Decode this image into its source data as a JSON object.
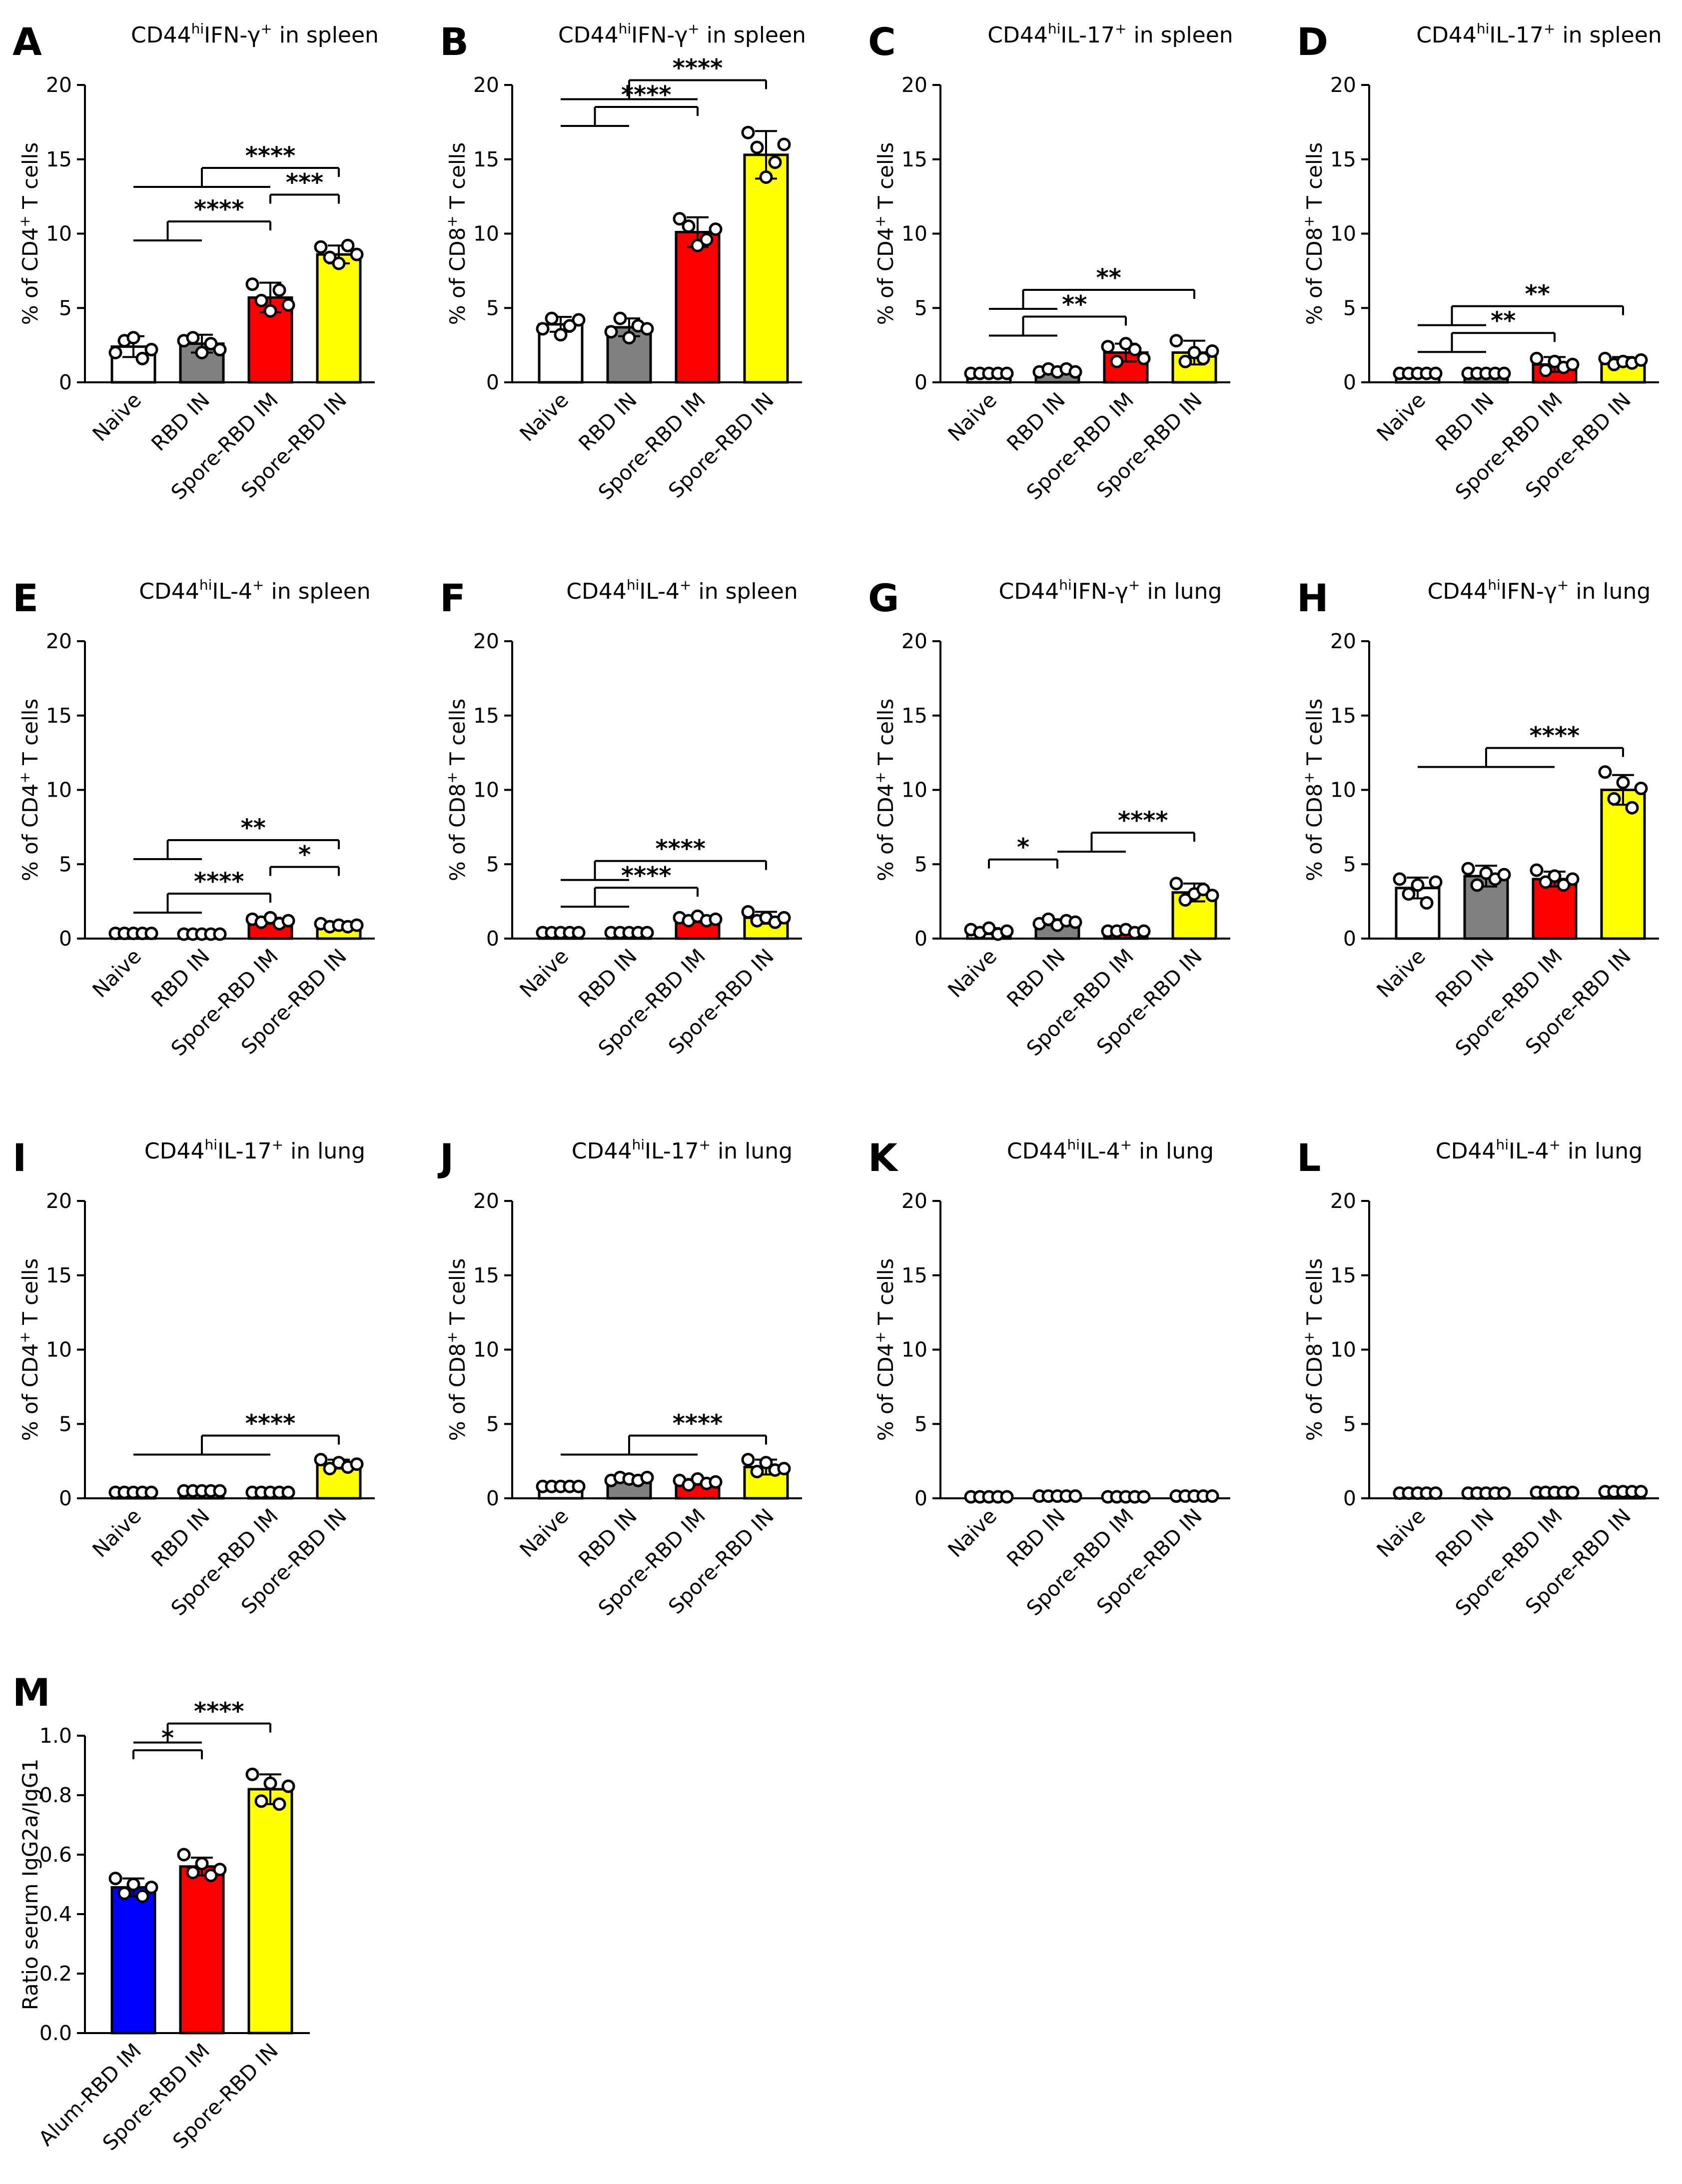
{
  "figure_caption_sup": {
    "hi": "hi",
    "plus": "+"
  },
  "chart_data": [
    {
      "panel": "A",
      "type": "bar",
      "title_base": "CD44",
      "title_marker": "IFN-γ",
      "title_suffix": " in spleen",
      "ylabel_pre": "% of CD4",
      "ylabel_post": " T cells",
      "ylim": [
        0,
        20
      ],
      "yticks": [
        0,
        5,
        10,
        15,
        20
      ],
      "categories": [
        "Naive",
        "RBD IN",
        "Spore-RBD IM",
        "Spore-RBD IN"
      ],
      "colors": [
        "#ffffff",
        "#808080",
        "#ff0000",
        "#ffff00"
      ],
      "values": [
        2.4,
        2.6,
        5.7,
        8.6
      ],
      "errors": [
        0.7,
        0.6,
        1.0,
        0.6
      ],
      "points": [
        [
          2.0,
          2.8,
          3.0,
          1.6,
          2.2
        ],
        [
          2.8,
          3.0,
          2.0,
          2.6,
          2.2
        ],
        [
          6.6,
          5.5,
          4.8,
          6.2,
          5.2
        ],
        [
          9.1,
          8.4,
          8.0,
          9.2,
          8.6
        ]
      ],
      "significance": [
        {
          "from": 0,
          "to": 3,
          "via": 2,
          "label": "****"
        },
        {
          "from": 2,
          "to": 3,
          "label": "***"
        },
        {
          "from": 0,
          "to": 2,
          "via": 1,
          "label": "****"
        }
      ]
    },
    {
      "panel": "B",
      "type": "bar",
      "title_base": "CD44",
      "title_marker": "IFN-γ",
      "title_suffix": " in spleen",
      "ylabel_pre": "% of CD8",
      "ylabel_post": " T cells",
      "ylim": [
        0,
        20
      ],
      "yticks": [
        0,
        5,
        10,
        15,
        20
      ],
      "categories": [
        "Naive",
        "RBD IN",
        "Spore-RBD IM",
        "Spore-RBD IN"
      ],
      "colors": [
        "#ffffff",
        "#808080",
        "#ff0000",
        "#ffff00"
      ],
      "values": [
        3.9,
        3.7,
        10.1,
        15.3
      ],
      "errors": [
        0.5,
        0.6,
        1.0,
        1.6
      ],
      "points": [
        [
          3.6,
          4.3,
          3.2,
          3.8,
          4.2
        ],
        [
          3.4,
          4.3,
          3.0,
          3.8,
          3.6
        ],
        [
          11.0,
          10.5,
          9.2,
          9.6,
          10.3
        ],
        [
          16.8,
          15.8,
          13.8,
          14.8,
          16.0
        ]
      ],
      "significance": [
        {
          "from": 0,
          "to": 3,
          "via": 2,
          "label": "****"
        },
        {
          "from": 0,
          "to": 2,
          "via": 1,
          "label": "****"
        }
      ]
    },
    {
      "panel": "C",
      "type": "bar",
      "title_base": "CD44",
      "title_marker": "IL-17",
      "title_suffix": " in spleen",
      "ylabel_pre": "% of CD4",
      "ylabel_post": " T cells",
      "ylim": [
        0,
        20
      ],
      "yticks": [
        0,
        5,
        10,
        15,
        20
      ],
      "categories": [
        "Naive",
        "RBD IN",
        "Spore-RBD IM",
        "Spore-RBD IN"
      ],
      "colors": [
        "#ffffff",
        "#808080",
        "#ff0000",
        "#ffff00"
      ],
      "values": [
        0.6,
        0.8,
        2.0,
        2.0
      ],
      "errors": [
        0.1,
        0.2,
        0.6,
        0.8
      ],
      "points": [
        [
          0.6,
          0.6,
          0.6,
          0.6,
          0.6
        ],
        [
          0.7,
          0.9,
          0.7,
          0.9,
          0.7
        ],
        [
          2.4,
          1.4,
          2.6,
          2.2,
          1.6
        ],
        [
          2.8,
          1.4,
          2.0,
          1.6,
          2.1
        ]
      ],
      "significance": [
        {
          "from": 0,
          "to": 3,
          "via": 1,
          "label": "**"
        },
        {
          "from": 0,
          "to": 2,
          "via": 1,
          "label": "**"
        }
      ]
    },
    {
      "panel": "D",
      "type": "bar",
      "title_base": "CD44",
      "title_marker": "IL-17",
      "title_suffix": " in spleen",
      "ylabel_pre": "% of CD8",
      "ylabel_post": " T cells",
      "ylim": [
        0,
        20
      ],
      "yticks": [
        0,
        5,
        10,
        15,
        20
      ],
      "categories": [
        "Naive",
        "RBD IN",
        "Spore-RBD IM",
        "Spore-RBD IN"
      ],
      "colors": [
        "#ffffff",
        "#808080",
        "#ff0000",
        "#ffff00"
      ],
      "values": [
        0.6,
        0.6,
        1.2,
        1.4
      ],
      "errors": [
        0.1,
        0.1,
        0.5,
        0.3
      ],
      "points": [
        [
          0.6,
          0.6,
          0.6,
          0.6,
          0.6
        ],
        [
          0.6,
          0.6,
          0.6,
          0.6,
          0.6
        ],
        [
          1.6,
          0.8,
          1.4,
          1.0,
          1.2
        ],
        [
          1.6,
          1.2,
          1.4,
          1.3,
          1.5
        ]
      ],
      "significance": [
        {
          "from": 0,
          "to": 3,
          "via": 1,
          "label": "**"
        },
        {
          "from": 0,
          "to": 2,
          "via": 1,
          "label": "**"
        }
      ]
    },
    {
      "panel": "E",
      "type": "bar",
      "title_base": "CD44",
      "title_marker": "IL-4",
      "title_suffix": " in spleen",
      "ylabel_pre": "% of CD4",
      "ylabel_post": " T cells",
      "ylim": [
        0,
        20
      ],
      "yticks": [
        0,
        5,
        10,
        15,
        20
      ],
      "categories": [
        "Naive",
        "RBD IN",
        "Spore-RBD IM",
        "Spore-RBD IN"
      ],
      "colors": [
        "#ffffff",
        "#808080",
        "#ff0000",
        "#ffff00"
      ],
      "values": [
        0.35,
        0.3,
        1.2,
        0.9
      ],
      "errors": [
        0.05,
        0.05,
        0.2,
        0.2
      ],
      "points": [
        [
          0.35,
          0.35,
          0.35,
          0.35,
          0.35
        ],
        [
          0.3,
          0.3,
          0.3,
          0.3,
          0.3
        ],
        [
          1.3,
          1.1,
          1.4,
          1.0,
          1.2
        ],
        [
          1.0,
          0.8,
          0.9,
          0.8,
          0.9
        ]
      ],
      "significance": [
        {
          "from": 0,
          "to": 3,
          "via": 1,
          "label": "**"
        },
        {
          "from": 2,
          "to": 3,
          "label": "*"
        },
        {
          "from": 0,
          "to": 2,
          "via": 1,
          "label": "****"
        }
      ]
    },
    {
      "panel": "F",
      "type": "bar",
      "title_base": "CD44",
      "title_marker": "IL-4",
      "title_suffix": " in spleen",
      "ylabel_pre": "% of CD8",
      "ylabel_post": " T cells",
      "ylim": [
        0,
        20
      ],
      "yticks": [
        0,
        5,
        10,
        15,
        20
      ],
      "categories": [
        "Naive",
        "RBD IN",
        "Spore-RBD IM",
        "Spore-RBD IN"
      ],
      "colors": [
        "#ffffff",
        "#808080",
        "#ff0000",
        "#ffff00"
      ],
      "values": [
        0.4,
        0.4,
        1.3,
        1.4
      ],
      "errors": [
        0.05,
        0.05,
        0.2,
        0.4
      ],
      "points": [
        [
          0.4,
          0.4,
          0.4,
          0.4,
          0.4
        ],
        [
          0.4,
          0.4,
          0.4,
          0.4,
          0.4
        ],
        [
          1.4,
          1.2,
          1.5,
          1.2,
          1.3
        ],
        [
          1.8,
          1.2,
          1.4,
          1.1,
          1.4
        ]
      ],
      "significance": [
        {
          "from": 0,
          "to": 3,
          "via": 1,
          "label": "****"
        },
        {
          "from": 0,
          "to": 2,
          "via": 1,
          "label": "****"
        }
      ]
    },
    {
      "panel": "G",
      "type": "bar",
      "title_base": "CD44",
      "title_marker": "IFN-γ",
      "title_suffix": " in lung",
      "ylabel_pre": "% of CD4",
      "ylabel_post": " T cells",
      "ylim": [
        0,
        20
      ],
      "yticks": [
        0,
        5,
        10,
        15,
        20
      ],
      "categories": [
        "Naive",
        "RBD IN",
        "Spore-RBD IM",
        "Spore-RBD IN"
      ],
      "colors": [
        "#ffffff",
        "#808080",
        "#ff0000",
        "#ffff00"
      ],
      "values": [
        0.5,
        1.1,
        0.5,
        3.1
      ],
      "errors": [
        0.2,
        0.2,
        0.1,
        0.6
      ],
      "points": [
        [
          0.6,
          0.4,
          0.7,
          0.3,
          0.5
        ],
        [
          1.0,
          1.3,
          0.9,
          1.2,
          1.1
        ],
        [
          0.5,
          0.5,
          0.6,
          0.4,
          0.5
        ],
        [
          3.7,
          2.6,
          3.0,
          3.3,
          2.9
        ]
      ],
      "significance": [
        {
          "from": 1,
          "to": 3,
          "via": 2,
          "label": "****"
        },
        {
          "from": 0,
          "to": 1,
          "label": "*"
        }
      ]
    },
    {
      "panel": "H",
      "type": "bar",
      "title_base": "CD44",
      "title_marker": "IFN-γ",
      "title_suffix": " in lung",
      "ylabel_pre": "% of CD8",
      "ylabel_post": " T cells",
      "ylim": [
        0,
        20
      ],
      "yticks": [
        0,
        5,
        10,
        15,
        20
      ],
      "categories": [
        "Naive",
        "RBD IN",
        "Spore-RBD IM",
        "Spore-RBD IN"
      ],
      "colors": [
        "#ffffff",
        "#808080",
        "#ff0000",
        "#ffff00"
      ],
      "values": [
        3.4,
        4.2,
        4.0,
        10.0
      ],
      "errors": [
        0.7,
        0.7,
        0.5,
        1.0
      ],
      "points": [
        [
          4.0,
          3.0,
          3.6,
          2.4,
          3.8
        ],
        [
          4.7,
          3.6,
          4.4,
          4.0,
          4.3
        ],
        [
          4.6,
          3.8,
          4.2,
          3.6,
          4.0
        ],
        [
          11.2,
          9.4,
          10.5,
          8.8,
          10.1
        ]
      ],
      "significance": [
        {
          "from": 0,
          "to": 3,
          "via": 2,
          "label": "****"
        }
      ]
    },
    {
      "panel": "I",
      "type": "bar",
      "title_base": "CD44",
      "title_marker": "IL-17",
      "title_suffix": " in lung",
      "ylabel_pre": "% of CD4",
      "ylabel_post": " T cells",
      "ylim": [
        0,
        20
      ],
      "yticks": [
        0,
        5,
        10,
        15,
        20
      ],
      "categories": [
        "Naive",
        "RBD IN",
        "Spore-RBD IM",
        "Spore-RBD IN"
      ],
      "colors": [
        "#ffffff",
        "#808080",
        "#ff0000",
        "#ffff00"
      ],
      "values": [
        0.4,
        0.5,
        0.4,
        2.3
      ],
      "errors": [
        0.05,
        0.1,
        0.05,
        0.3
      ],
      "points": [
        [
          0.4,
          0.4,
          0.4,
          0.4,
          0.4
        ],
        [
          0.5,
          0.5,
          0.5,
          0.5,
          0.5
        ],
        [
          0.4,
          0.4,
          0.4,
          0.4,
          0.4
        ],
        [
          2.6,
          2.0,
          2.4,
          2.1,
          2.3
        ]
      ],
      "significance": [
        {
          "from": 0,
          "to": 3,
          "via": 2,
          "label": "****"
        }
      ]
    },
    {
      "panel": "J",
      "type": "bar",
      "title_base": "CD44",
      "title_marker": "IL-17",
      "title_suffix": " in lung",
      "ylabel_pre": "% of CD8",
      "ylabel_post": " T cells",
      "ylim": [
        0,
        20
      ],
      "yticks": [
        0,
        5,
        10,
        15,
        20
      ],
      "categories": [
        "Naive",
        "RBD IN",
        "Spore-RBD IM",
        "Spore-RBD IN"
      ],
      "colors": [
        "#ffffff",
        "#808080",
        "#ff0000",
        "#ffff00"
      ],
      "values": [
        0.8,
        1.3,
        1.1,
        2.1
      ],
      "errors": [
        0.1,
        0.2,
        0.2,
        0.5
      ],
      "points": [
        [
          0.8,
          0.8,
          0.8,
          0.8,
          0.8
        ],
        [
          1.2,
          1.4,
          1.3,
          1.2,
          1.4
        ],
        [
          1.2,
          0.9,
          1.3,
          1.0,
          1.1
        ],
        [
          2.6,
          1.8,
          2.4,
          1.9,
          2.0
        ]
      ],
      "significance": [
        {
          "from": 0,
          "to": 3,
          "via": 2,
          "label": "****"
        }
      ]
    },
    {
      "panel": "K",
      "type": "bar",
      "title_base": "CD44",
      "title_marker": "IL-4",
      "title_suffix": " in lung",
      "ylabel_pre": "% of CD4",
      "ylabel_post": " T cells",
      "ylim": [
        0,
        20
      ],
      "yticks": [
        0,
        5,
        10,
        15,
        20
      ],
      "categories": [
        "Naive",
        "RBD IN",
        "Spore-RBD IM",
        "Spore-RBD IN"
      ],
      "colors": [
        "#ffffff",
        "#808080",
        "#ff0000",
        "#ffff00"
      ],
      "values": [
        0.1,
        0.15,
        0.1,
        0.15
      ],
      "errors": [
        0.02,
        0.02,
        0.02,
        0.02
      ],
      "points": [
        [
          0.1,
          0.1,
          0.1,
          0.1,
          0.1
        ],
        [
          0.15,
          0.15,
          0.15,
          0.15,
          0.15
        ],
        [
          0.1,
          0.1,
          0.1,
          0.1,
          0.1
        ],
        [
          0.15,
          0.15,
          0.15,
          0.15,
          0.15
        ]
      ],
      "significance": []
    },
    {
      "panel": "L",
      "type": "bar",
      "title_base": "CD44",
      "title_marker": "IL-4",
      "title_suffix": " in lung",
      "ylabel_pre": "% of CD8",
      "ylabel_post": " T cells",
      "ylim": [
        0,
        20
      ],
      "yticks": [
        0,
        5,
        10,
        15,
        20
      ],
      "categories": [
        "Naive",
        "RBD IN",
        "Spore-RBD IM",
        "Spore-RBD IN"
      ],
      "colors": [
        "#ffffff",
        "#808080",
        "#ff0000",
        "#ffff00"
      ],
      "values": [
        0.35,
        0.35,
        0.4,
        0.45
      ],
      "errors": [
        0.03,
        0.03,
        0.05,
        0.05
      ],
      "points": [
        [
          0.35,
          0.35,
          0.35,
          0.35,
          0.35
        ],
        [
          0.35,
          0.35,
          0.35,
          0.35,
          0.35
        ],
        [
          0.4,
          0.4,
          0.4,
          0.4,
          0.4
        ],
        [
          0.45,
          0.45,
          0.45,
          0.45,
          0.45
        ]
      ],
      "significance": []
    },
    {
      "panel": "M",
      "type": "bar",
      "title_base": "",
      "title_marker": "",
      "title_suffix": "",
      "ylabel_pre": "Ratio serum IgG2a/IgG1",
      "ylabel_post": "",
      "ylim": [
        0,
        1.0
      ],
      "yticks": [
        0.0,
        0.2,
        0.4,
        0.6,
        0.8,
        1.0
      ],
      "tick_decimals": 1,
      "categories": [
        "Alum-RBD IM",
        "Spore-RBD IM",
        "Spore-RBD IN"
      ],
      "colors": [
        "#0000ff",
        "#ff0000",
        "#ffff00"
      ],
      "values": [
        0.49,
        0.56,
        0.82
      ],
      "errors": [
        0.03,
        0.03,
        0.05
      ],
      "points": [
        [
          0.52,
          0.47,
          0.5,
          0.46,
          0.49
        ],
        [
          0.6,
          0.54,
          0.57,
          0.53,
          0.55
        ],
        [
          0.87,
          0.78,
          0.84,
          0.77,
          0.83
        ]
      ],
      "significance": [
        {
          "from": 0,
          "to": 2,
          "via": 1,
          "label": "****"
        },
        {
          "from": 0,
          "to": 1,
          "label": "*"
        }
      ]
    }
  ]
}
